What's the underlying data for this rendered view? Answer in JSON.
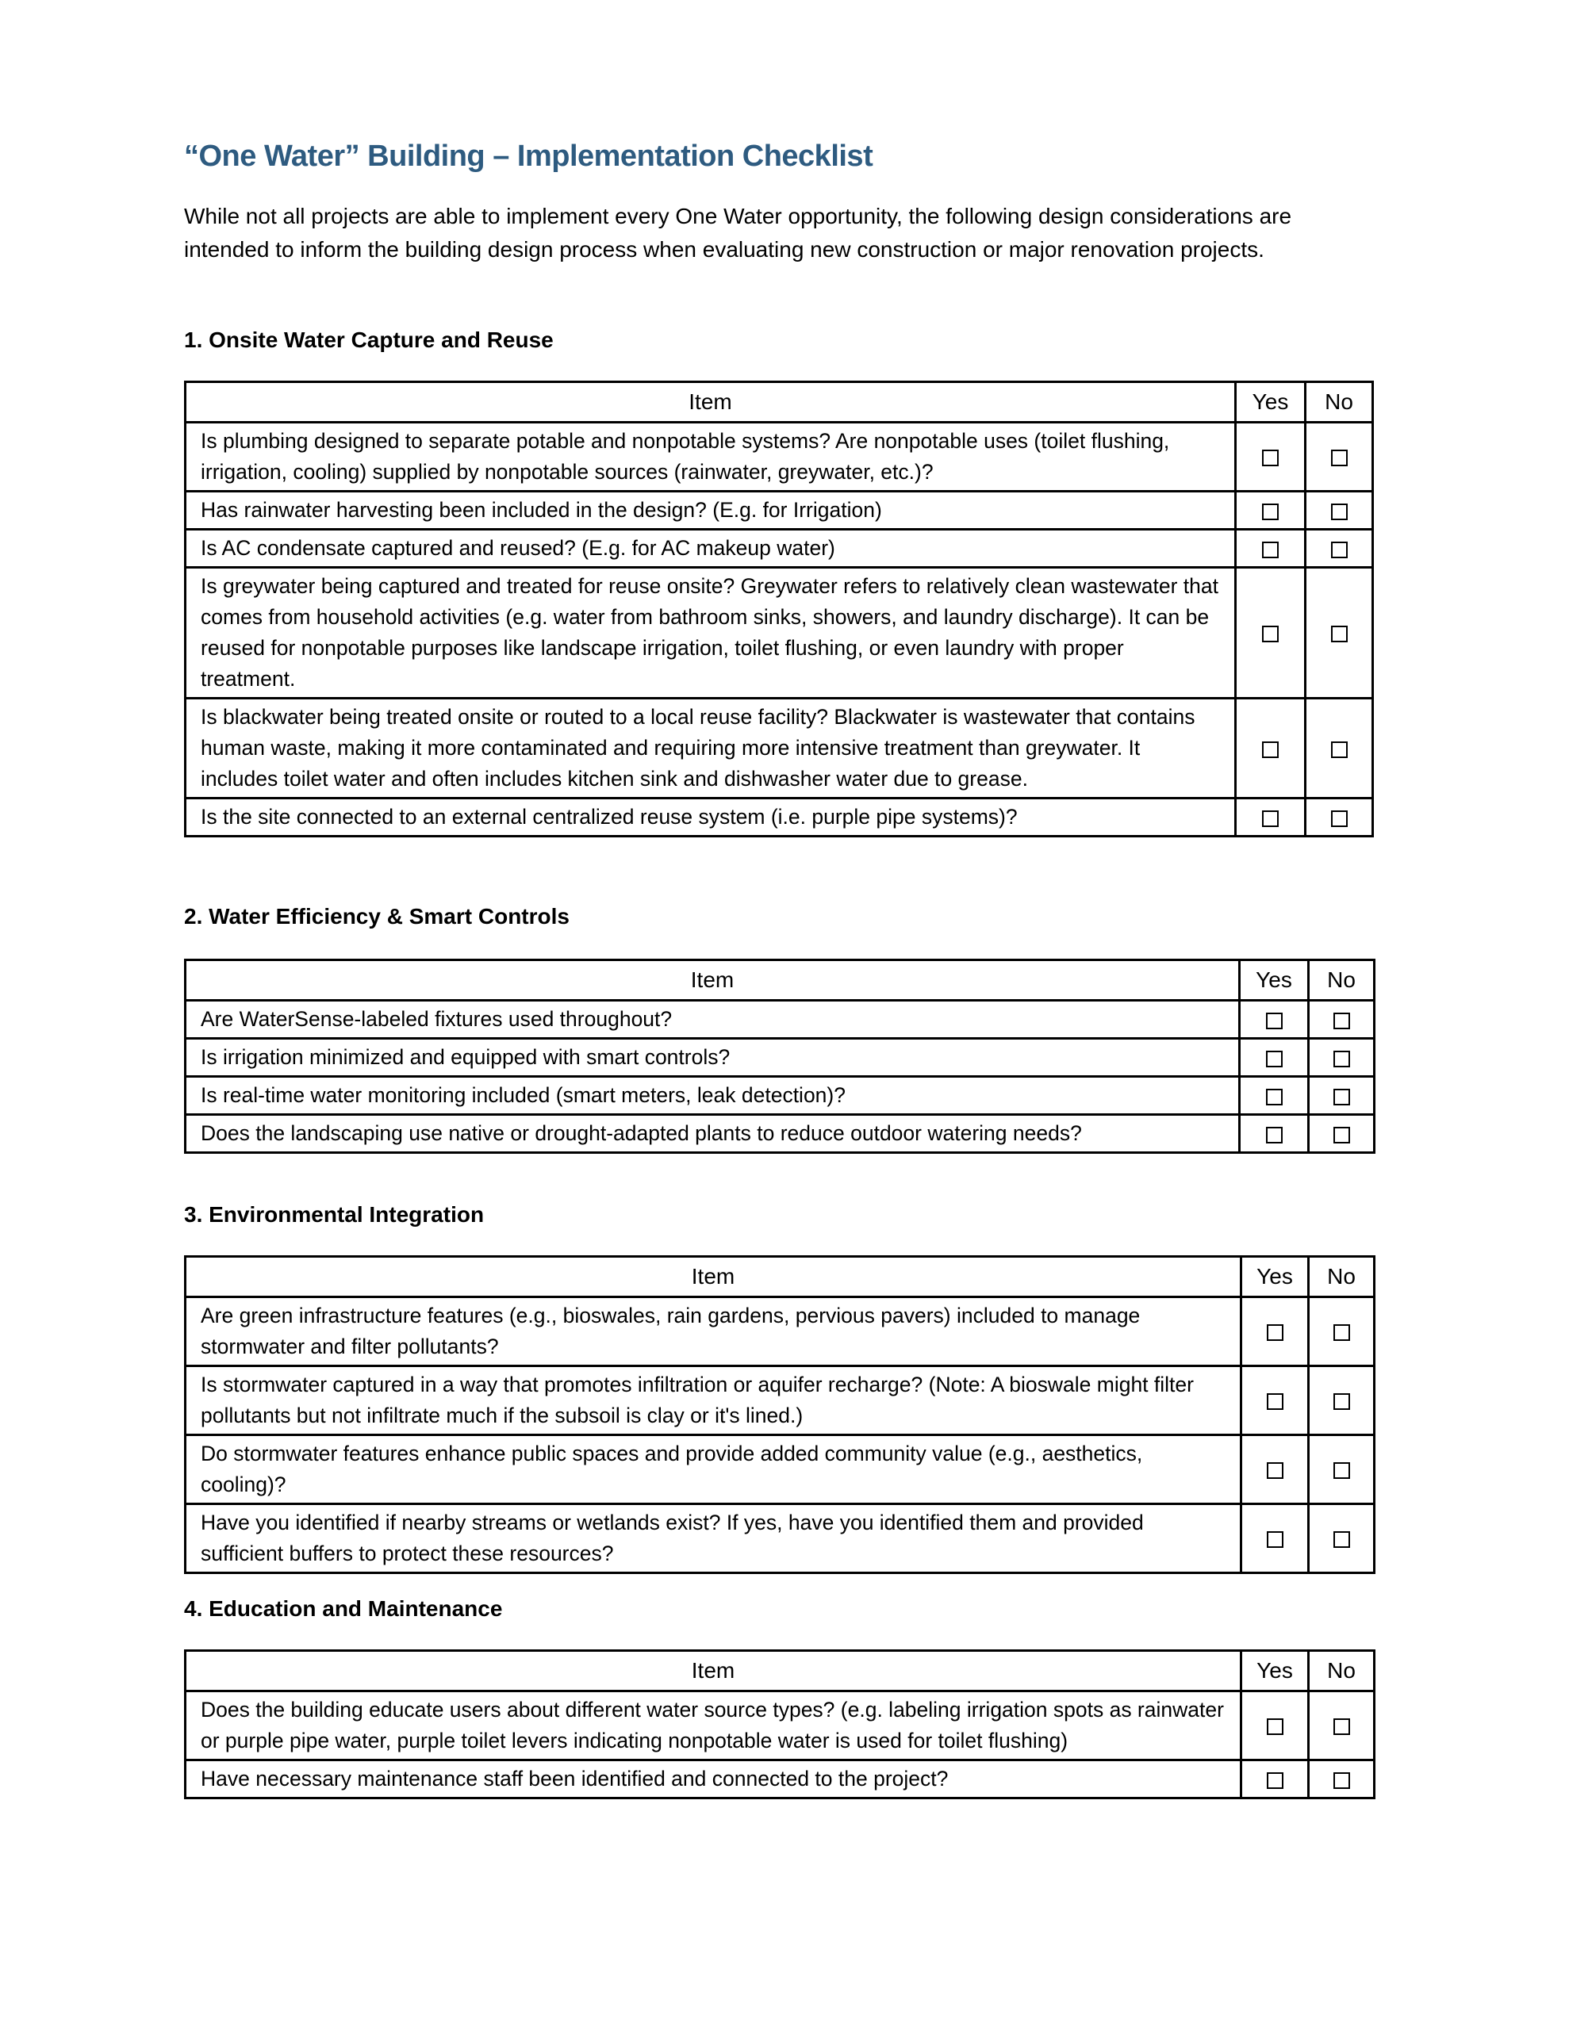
{
  "title": "“One Water” Building – Implementation Checklist",
  "intro": "While not all projects are able to implement every One Water opportunity, the following design considerations are intended to inform the building design process when evaluating new construction or major renovation projects.",
  "columns": {
    "item": "Item",
    "yes": "Yes",
    "no": "No"
  },
  "sections": [
    {
      "heading": "1. Onsite Water Capture and Reuse",
      "items": [
        "Is plumbing designed to separate potable and nonpotable systems? Are nonpotable uses (toilet flushing, irrigation, cooling) supplied by nonpotable sources (rainwater, greywater, etc.)?",
        "Has rainwater harvesting been included in the design? (E.g. for Irrigation)",
        "Is AC condensate captured and reused? (E.g. for AC makeup water)",
        "Is greywater being captured and treated for reuse onsite? Greywater refers to relatively clean wastewater that comes from household activities (e.g. water from bathroom sinks, showers, and laundry discharge). It can be reused for nonpotable purposes like landscape irrigation, toilet flushing, or even laundry with proper treatment.",
        "Is blackwater being treated onsite or routed to a local reuse facility? Blackwater is wastewater that contains human waste, making it more contaminated and requiring more intensive treatment than greywater. It includes toilet water and often includes kitchen sink and dishwasher water due to grease.",
        "Is the site connected to an external centralized reuse system (i.e. purple pipe systems)?"
      ]
    },
    {
      "heading": "2. Water Efficiency & Smart Controls",
      "items": [
        "Are WaterSense-labeled fixtures used throughout?",
        "Is irrigation minimized and equipped with smart controls?",
        "Is real-time water monitoring included (smart meters, leak detection)?",
        "Does the landscaping use native or drought-adapted plants to reduce outdoor watering needs?"
      ]
    },
    {
      "heading": "3. Environmental Integration",
      "items": [
        "Are green infrastructure features (e.g., bioswales, rain gardens, pervious pavers) included to manage stormwater and filter pollutants?",
        "Is stormwater captured in a way that promotes infiltration or aquifer recharge? (Note: A bioswale might filter pollutants but not infiltrate much if the subsoil is clay or it's lined.)",
        "Do stormwater features enhance public spaces and provide added community value (e.g., aesthetics, cooling)?",
        "Have you identified if nearby streams or wetlands exist? If yes, have you identified them and provided sufficient buffers to protect these resources?"
      ]
    },
    {
      "heading": "4. Education and Maintenance",
      "items": [
        "Does the building educate users about different water source types? (e.g. labeling irrigation spots as rainwater or purple pipe water, purple toilet levers indicating nonpotable water is used for toilet flushing)",
        "Have necessary maintenance staff been identified and connected to the project?"
      ]
    }
  ]
}
